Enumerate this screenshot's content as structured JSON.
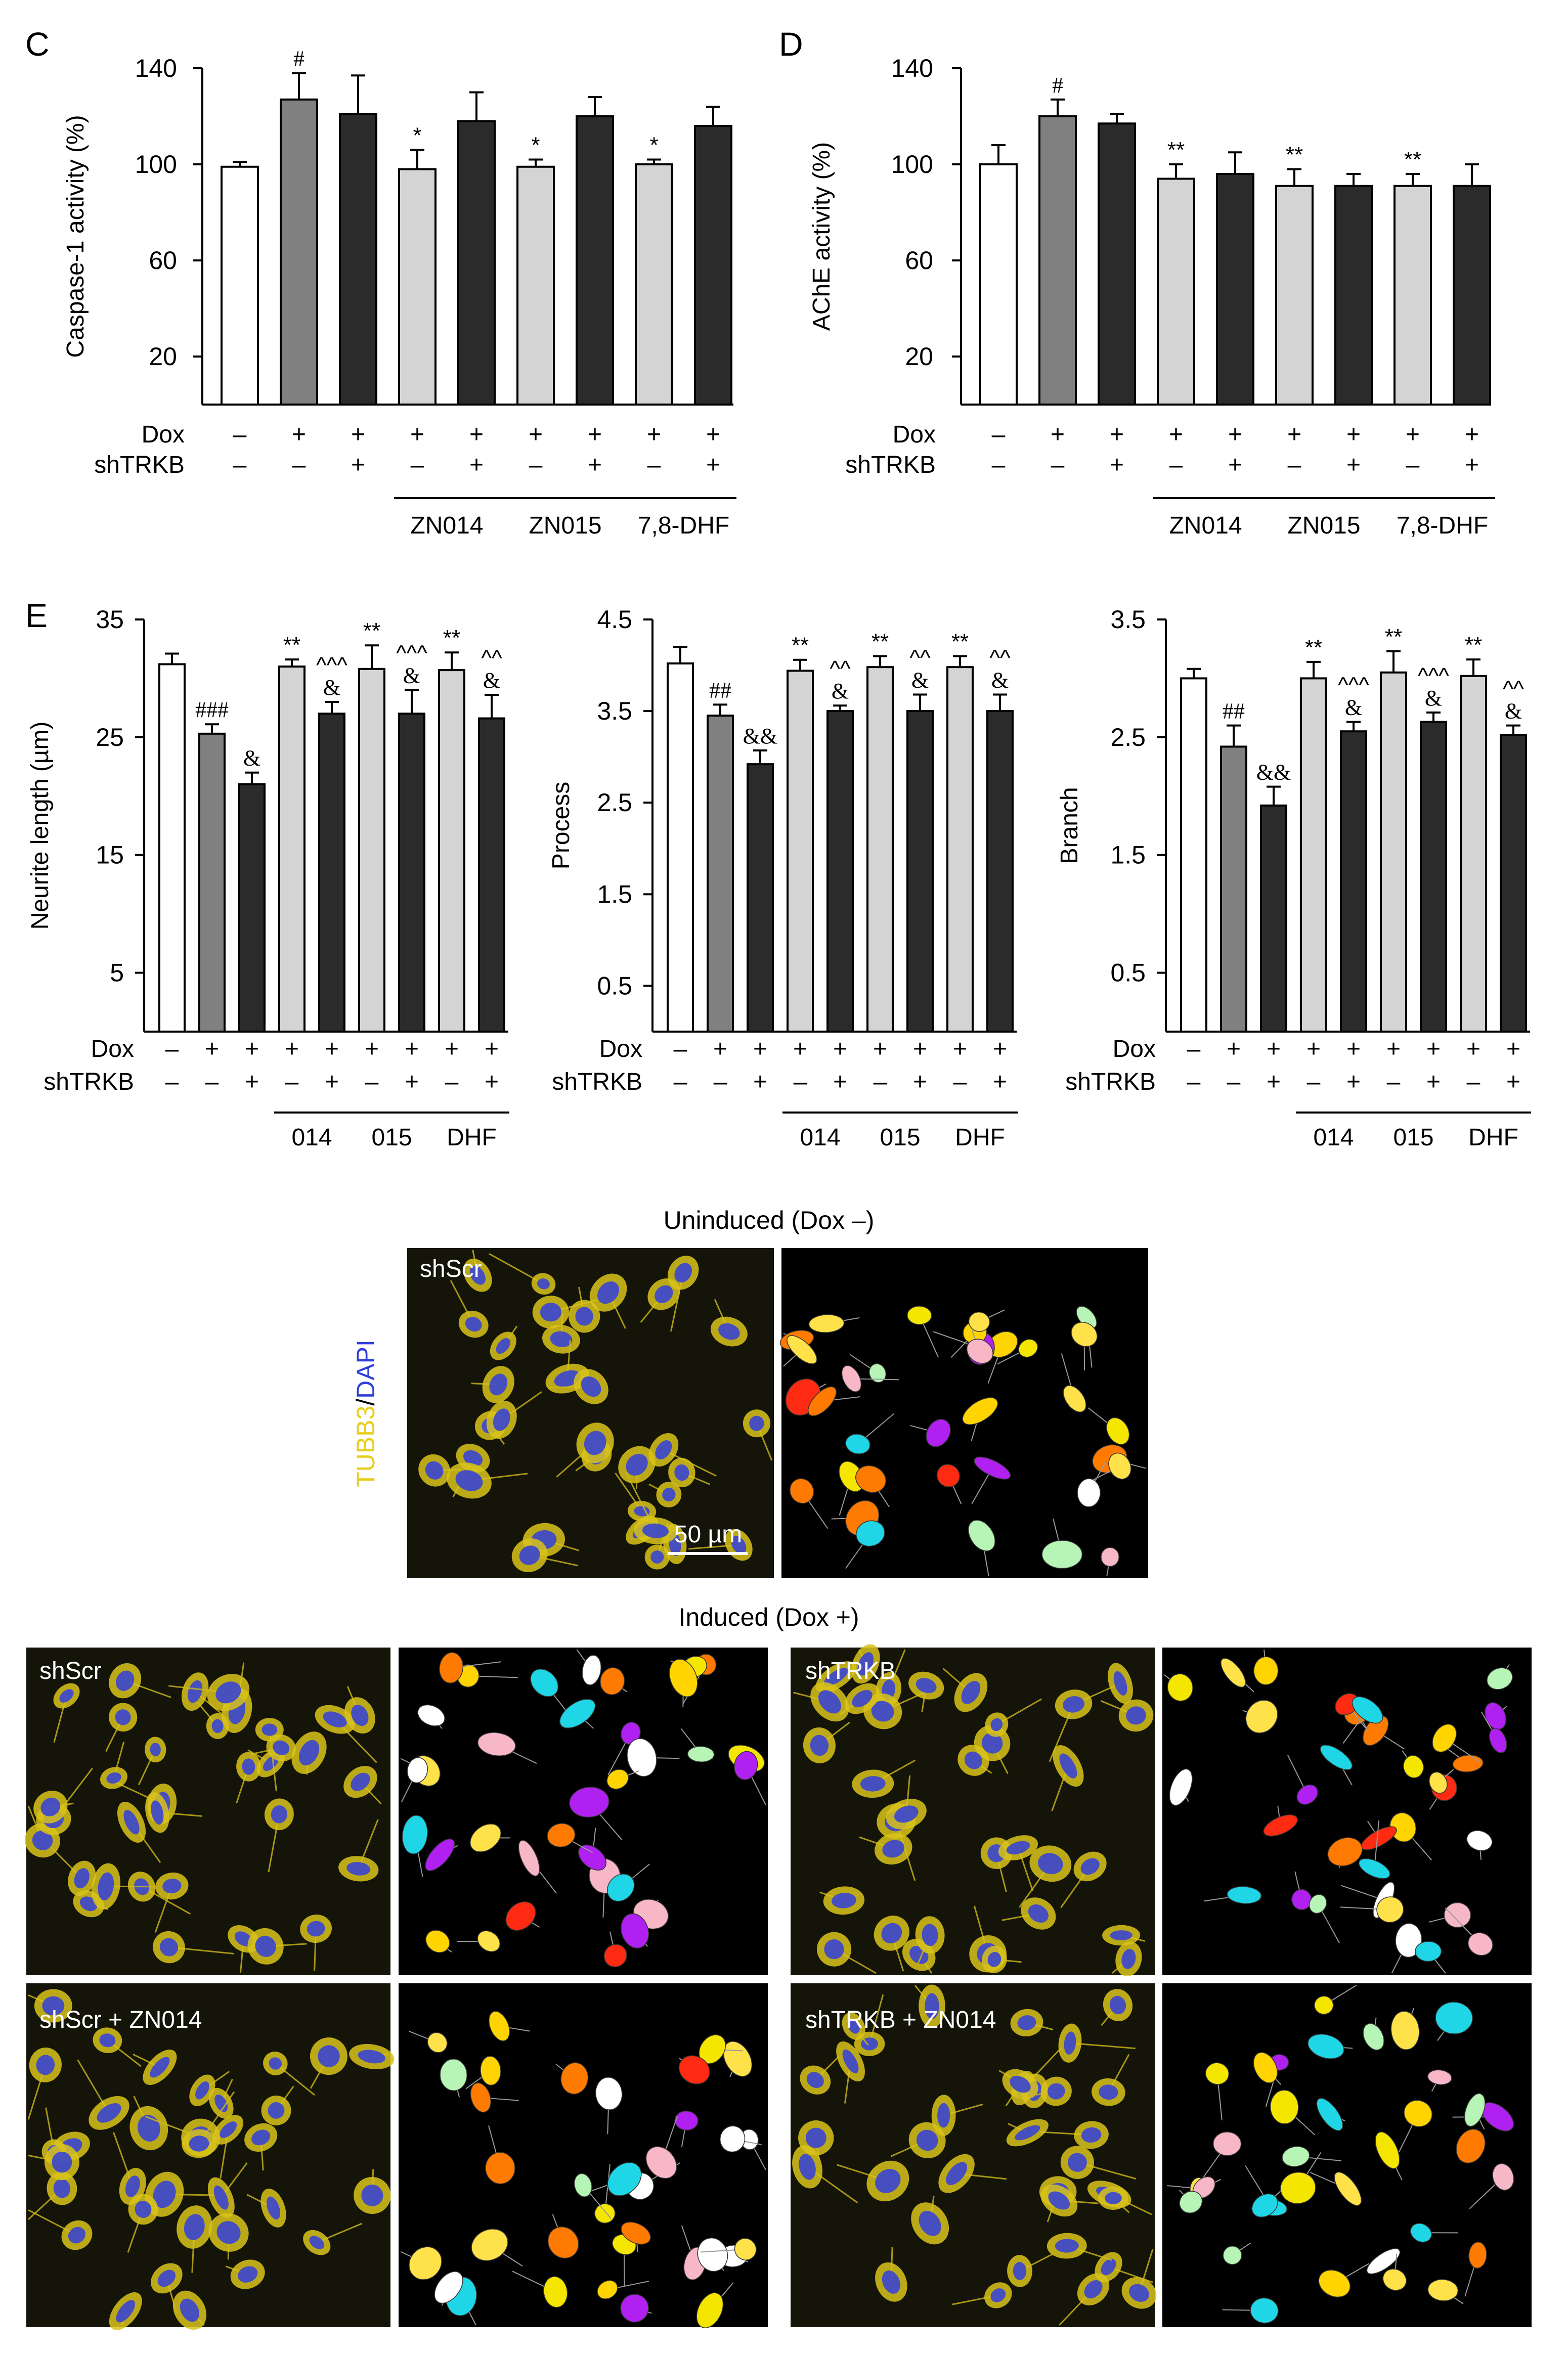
{
  "colors": {
    "untreated": "#ffffff",
    "dox": "#808080",
    "shTRKB": "#2b2b2b",
    "compound": "#d4d4d4",
    "tubb3": "#e6cf1c",
    "dapi": "#2f3fd8"
  },
  "condition_rows": {
    "dox_label": "Dox",
    "shtrkb_label": "shTRKB",
    "dox": [
      "–",
      "+",
      "+",
      "+",
      "+",
      "+",
      "+",
      "+",
      "+"
    ],
    "shtrkb": [
      "–",
      "–",
      "+",
      "–",
      "+",
      "–",
      "+",
      "–",
      "+"
    ]
  },
  "chart_data": [
    {
      "id": "C",
      "panel_letter": "C",
      "type": "bar",
      "ylabel": "Caspase-1 activity (%)",
      "ylim": [
        0,
        140
      ],
      "yticks": [
        20,
        60,
        100,
        140
      ],
      "values": [
        99,
        127,
        121,
        98,
        118,
        99,
        120,
        100,
        116
      ],
      "errors": [
        2,
        11,
        16,
        8,
        12,
        3,
        8,
        2,
        8
      ],
      "sig": [
        "",
        "#",
        "",
        "*",
        "",
        "*",
        "",
        "*",
        ""
      ],
      "groups": [
        "ZN014",
        "ZN015",
        "7,8-DHF"
      ]
    },
    {
      "id": "D",
      "panel_letter": "D",
      "type": "bar",
      "ylabel": "AChE activity (%)",
      "ylim": [
        0,
        140
      ],
      "yticks": [
        20,
        60,
        100,
        140
      ],
      "values": [
        100,
        120,
        117,
        94,
        96,
        91,
        91,
        91,
        91
      ],
      "errors": [
        8,
        7,
        4,
        6,
        9,
        7,
        5,
        5,
        9
      ],
      "sig": [
        "",
        "#",
        "",
        "**",
        "",
        "**",
        "",
        "**",
        ""
      ],
      "groups": [
        "ZN014",
        "ZN015",
        "7,8-DHF"
      ]
    },
    {
      "id": "E1",
      "panel_letter": "E",
      "type": "bar",
      "ylabel": "Neurite length (µm)",
      "ylim": [
        0,
        35
      ],
      "yticks": [
        5,
        15,
        25,
        35
      ],
      "values": [
        31.2,
        25.3,
        21.0,
        31.0,
        27.0,
        30.8,
        27.0,
        30.7,
        26.6
      ],
      "errors": [
        0.9,
        0.8,
        1.0,
        0.6,
        1.0,
        2.0,
        2.0,
        1.5,
        2.0
      ],
      "sig": [
        "",
        "###",
        "&",
        "**",
        "^^^\n&",
        "**",
        "^^^\n&",
        "**",
        "^^\n&"
      ],
      "groups": [
        "014",
        "015",
        "DHF"
      ]
    },
    {
      "id": "E2",
      "panel_letter": "",
      "type": "bar",
      "ylabel": "Process",
      "ylim": [
        0,
        4.5
      ],
      "yticks": [
        0.5,
        1.5,
        2.5,
        3.5,
        4.5
      ],
      "values": [
        4.02,
        3.45,
        2.92,
        3.94,
        3.5,
        3.98,
        3.5,
        3.98,
        3.5
      ],
      "errors": [
        0.18,
        0.12,
        0.15,
        0.12,
        0.06,
        0.12,
        0.18,
        0.12,
        0.18
      ],
      "sig": [
        "",
        "##",
        "&&",
        "**",
        "^^\n&",
        "**",
        "^^\n&",
        "**",
        "^^\n&"
      ],
      "groups": [
        "014",
        "015",
        "DHF"
      ]
    },
    {
      "id": "E3",
      "panel_letter": "",
      "type": "bar",
      "ylabel": "Branch",
      "ylim": [
        0,
        3.5
      ],
      "yticks": [
        0.5,
        1.5,
        2.5,
        3.5
      ],
      "values": [
        3.0,
        2.42,
        1.92,
        3.0,
        2.55,
        3.05,
        2.63,
        3.02,
        2.52
      ],
      "errors": [
        0.08,
        0.18,
        0.16,
        0.14,
        0.08,
        0.18,
        0.08,
        0.14,
        0.08
      ],
      "sig": [
        "",
        "##",
        "&&",
        "**",
        "^^^\n&",
        "**",
        "^^^\n&",
        "**",
        "^^\n&"
      ],
      "groups": [
        "014",
        "015",
        "DHF"
      ]
    }
  ],
  "images": {
    "uninduced_title": "Uninduced (Dox –)",
    "induced_title": "Induced (Dox +)",
    "stain_label_part1": "TUBB3",
    "stain_label_slash": "/",
    "stain_label_part2": "DAPI",
    "scale_bar": "50 µm",
    "labels": {
      "uninduced_shscr": "shScr",
      "induced_shscr": "shScr",
      "induced_shtrkb": "shTRKB",
      "induced_shscr_zn014": "shScr + ZN014",
      "induced_shtrkb_zn014": "shTRKB + ZN014"
    }
  }
}
